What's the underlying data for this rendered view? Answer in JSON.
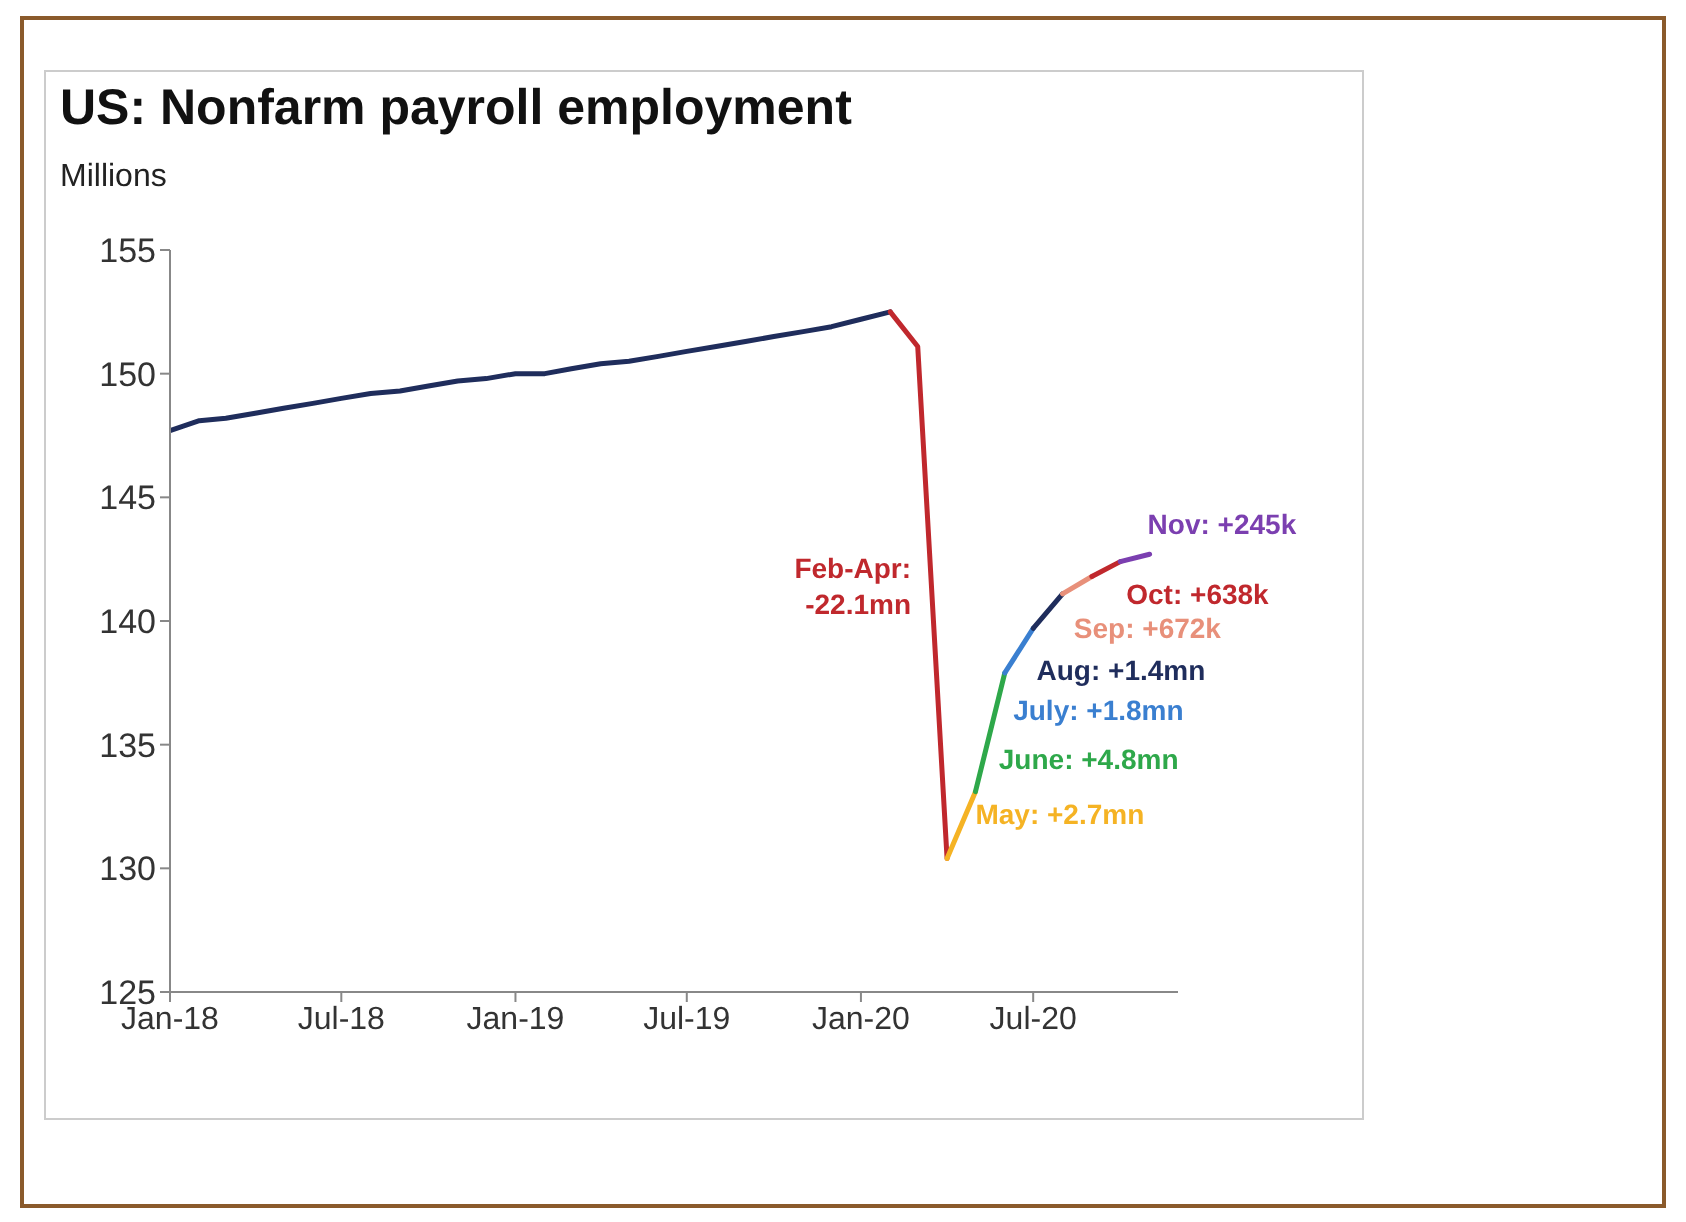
{
  "chart_data": {
    "type": "line",
    "title": "US: Nonfarm payroll employment",
    "ylabel": "Millions",
    "xlim": [
      "2018-01",
      "2020-12"
    ],
    "xticks": [
      {
        "value": "2018-01",
        "label": "Jan-18"
      },
      {
        "value": "2018-07",
        "label": "Jul-18"
      },
      {
        "value": "2019-01",
        "label": "Jan-19"
      },
      {
        "value": "2019-07",
        "label": "Jul-19"
      },
      {
        "value": "2020-01",
        "label": "Jan-20"
      },
      {
        "value": "2020-07",
        "label": "Jul-20"
      }
    ],
    "ylim": [
      125,
      155
    ],
    "yticks": [
      125,
      130,
      135,
      140,
      145,
      150,
      155
    ],
    "grid": false,
    "legend": false,
    "marker": "none",
    "line_style": "solid",
    "series": [
      {
        "color": "#1f2d5c",
        "x": [
          "2018-01",
          "2018-02",
          "2018-03",
          "2018-04",
          "2018-05",
          "2018-06",
          "2018-07",
          "2018-08",
          "2018-09",
          "2018-10",
          "2018-11",
          "2018-12",
          "2019-01",
          "2019-02",
          "2019-03",
          "2019-04",
          "2019-05",
          "2019-06",
          "2019-07",
          "2019-08",
          "2019-09",
          "2019-10",
          "2019-11",
          "2019-12",
          "2020-01",
          "2020-02"
        ],
        "values": [
          147.7,
          148.1,
          148.2,
          148.4,
          148.6,
          148.8,
          149.0,
          149.2,
          149.3,
          149.5,
          149.7,
          149.8,
          150.0,
          150.0,
          150.2,
          150.4,
          150.5,
          150.7,
          150.9,
          151.1,
          151.3,
          151.5,
          151.7,
          151.9,
          152.2,
          152.5
        ]
      },
      {
        "name": "Feb-Apr: -22.1mn",
        "color": "#c0282d",
        "x": [
          "2020-02",
          "2020-03",
          "2020-04"
        ],
        "values": [
          152.5,
          151.1,
          130.4
        ]
      },
      {
        "name": "May: +2.7mn",
        "color": "#f5b324",
        "x": [
          "2020-04",
          "2020-05"
        ],
        "values": [
          130.4,
          133.1
        ]
      },
      {
        "name": "June: +4.8mn",
        "color": "#2ea84a",
        "x": [
          "2020-05",
          "2020-06"
        ],
        "values": [
          133.1,
          137.9
        ]
      },
      {
        "name": "July: +1.8mn",
        "color": "#3a7fd0",
        "x": [
          "2020-06",
          "2020-07"
        ],
        "values": [
          137.9,
          139.7
        ]
      },
      {
        "name": "Aug: +1.4mn",
        "color": "#1f2d5c",
        "x": [
          "2020-07",
          "2020-08"
        ],
        "values": [
          139.7,
          141.1
        ]
      },
      {
        "name": "Sep: +672k",
        "color": "#e8907a",
        "x": [
          "2020-08",
          "2020-09"
        ],
        "values": [
          141.1,
          141.8
        ]
      },
      {
        "name": "Oct: +638k",
        "color": "#c0282d",
        "x": [
          "2020-09",
          "2020-10"
        ],
        "values": [
          141.8,
          142.4
        ]
      },
      {
        "name": "Nov: +245k",
        "color": "#7b3fb0",
        "x": [
          "2020-10",
          "2020-11"
        ],
        "values": [
          142.4,
          142.7
        ]
      }
    ]
  }
}
